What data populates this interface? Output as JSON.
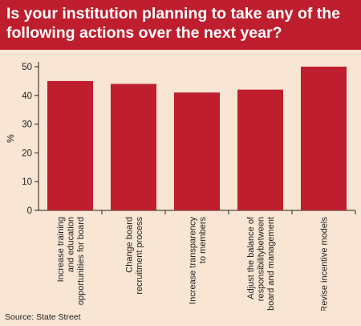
{
  "chart_data": {
    "type": "bar",
    "title_lines": [
      "Is your institution planning to take any of the",
      "following actions over the next year?"
    ],
    "ylabel": "%",
    "xlabel": "",
    "ylim": [
      0,
      50
    ],
    "yticks": [
      0,
      10,
      20,
      30,
      40,
      50
    ],
    "grid": false,
    "categories": [
      [
        "Increase training",
        "and education",
        "opportunities for board"
      ],
      [
        "Change board",
        "recruitment process"
      ],
      [
        "Increase transparency",
        "to members"
      ],
      [
        "Adjust the balance of",
        "responsibilitybetween",
        "board and management"
      ],
      [
        "Revise incentive models"
      ]
    ],
    "values": [
      45,
      44,
      41,
      42,
      50
    ],
    "colors": {
      "bar": "#be1e2d",
      "background": "#f8e5d3",
      "title_band": "#be1e2d"
    }
  },
  "source": "Source: State Street"
}
